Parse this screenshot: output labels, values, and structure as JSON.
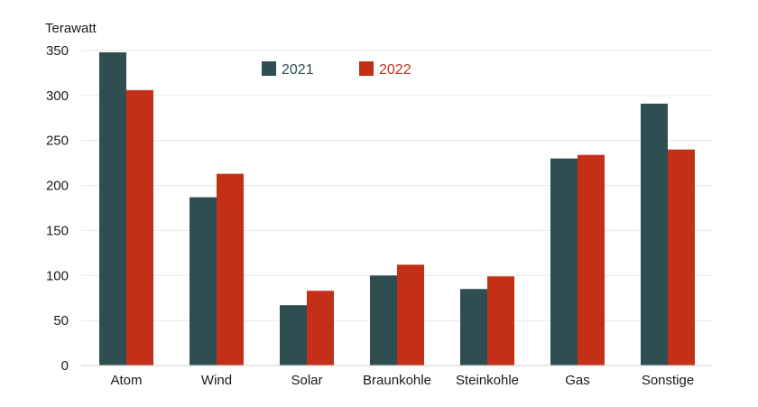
{
  "chart_data": {
    "type": "bar",
    "ylabel": "Terawatt",
    "xlabel": "",
    "title": "",
    "categories": [
      "Atom",
      "Wind",
      "Solar",
      "Braunkohle",
      "Steinkohle",
      "Gas",
      "Sonstige"
    ],
    "series": [
      {
        "name": "2021",
        "color": "#2e4e52",
        "values": [
          348,
          187,
          67,
          100,
          85,
          230,
          291
        ]
      },
      {
        "name": "2022",
        "color": "#c43017",
        "values": [
          306,
          213,
          83,
          112,
          99,
          234,
          240
        ]
      }
    ],
    "ylim": [
      0,
      350
    ],
    "yticks": [
      0,
      50,
      100,
      150,
      200,
      250,
      300,
      350
    ],
    "grid": true,
    "legend_position": "top-center"
  }
}
